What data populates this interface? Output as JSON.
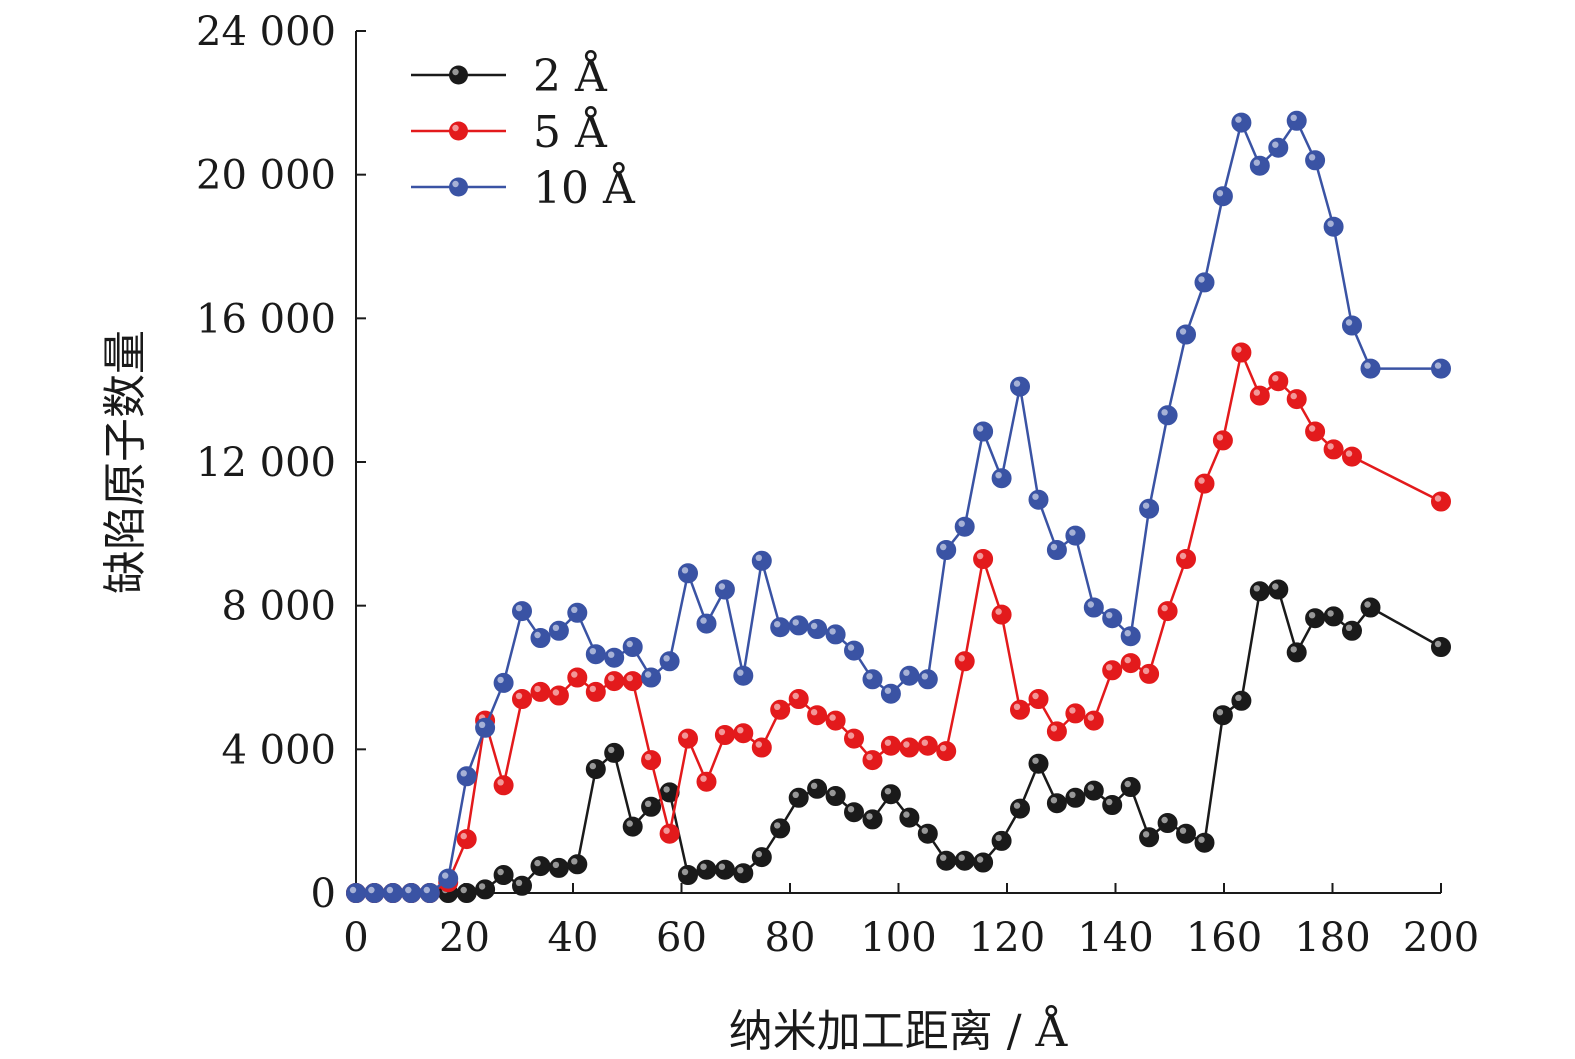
{
  "chart_data": {
    "type": "line",
    "title": "",
    "xlabel": "纳米加工距离 / Å",
    "ylabel": "缺陷原子数量",
    "xlim": [
      0,
      200
    ],
    "ylim": [
      0,
      24000
    ],
    "x_ticks": [
      0,
      20,
      40,
      60,
      80,
      100,
      120,
      140,
      160,
      180,
      200
    ],
    "x_tick_labels": [
      "0",
      "20",
      "40",
      "60",
      "80",
      "100",
      "120",
      "140",
      "160",
      "180",
      "200"
    ],
    "y_ticks": [
      0,
      4000,
      8000,
      12000,
      16000,
      20000,
      24000
    ],
    "y_tick_labels": [
      "0",
      "4 000",
      "8 000",
      "12 000",
      "16 000",
      "20 000",
      "24 000"
    ],
    "grid": false,
    "legend_position": "top-left",
    "series": [
      {
        "name": "2 Å",
        "color": "#1a1a1a",
        "points": [
          [
            0,
            0
          ],
          [
            3.4,
            0
          ],
          [
            6.8,
            0
          ],
          [
            10.2,
            0
          ],
          [
            13.6,
            0
          ],
          [
            17,
            0
          ],
          [
            20.4,
            0
          ],
          [
            23.8,
            100
          ],
          [
            27.2,
            500
          ],
          [
            30.6,
            200
          ],
          [
            34,
            750
          ],
          [
            37.4,
            700
          ],
          [
            40.8,
            800
          ],
          [
            44.2,
            3450
          ],
          [
            47.6,
            3900
          ],
          [
            51,
            1850
          ],
          [
            54.4,
            2400
          ],
          [
            57.8,
            2800
          ],
          [
            61.2,
            500
          ],
          [
            64.6,
            650
          ],
          [
            68,
            650
          ],
          [
            71.4,
            550
          ],
          [
            74.8,
            1000
          ],
          [
            78.2,
            1800
          ],
          [
            81.6,
            2650
          ],
          [
            85,
            2900
          ],
          [
            88.4,
            2700
          ],
          [
            91.8,
            2250
          ],
          [
            95.2,
            2050
          ],
          [
            98.6,
            2750
          ],
          [
            102,
            2100
          ],
          [
            105.4,
            1650
          ],
          [
            108.8,
            900
          ],
          [
            112.2,
            900
          ],
          [
            115.6,
            850
          ],
          [
            119,
            1450
          ],
          [
            122.4,
            2350
          ],
          [
            125.8,
            3600
          ],
          [
            129.2,
            2500
          ],
          [
            132.6,
            2650
          ],
          [
            136,
            2850
          ],
          [
            139.4,
            2450
          ],
          [
            142.8,
            2950
          ],
          [
            146.2,
            1550
          ],
          [
            149.6,
            1950
          ],
          [
            153,
            1650
          ],
          [
            156.4,
            1400
          ],
          [
            159.8,
            4950
          ],
          [
            163.2,
            5350
          ],
          [
            166.6,
            8400
          ],
          [
            170,
            8450
          ],
          [
            173.4,
            6700
          ],
          [
            176.8,
            7650
          ],
          [
            180.2,
            7700
          ],
          [
            183.6,
            7300
          ],
          [
            187,
            7950
          ],
          [
            200,
            6850
          ]
        ]
      },
      {
        "name": "5 Å",
        "color": "#e31a1c",
        "points": [
          [
            0,
            0
          ],
          [
            3.4,
            0
          ],
          [
            6.8,
            0
          ],
          [
            10.2,
            0
          ],
          [
            13.6,
            0
          ],
          [
            17,
            300
          ],
          [
            20.4,
            1500
          ],
          [
            23.8,
            4800
          ],
          [
            27.2,
            3000
          ],
          [
            30.6,
            5400
          ],
          [
            34,
            5600
          ],
          [
            37.4,
            5500
          ],
          [
            40.8,
            6000
          ],
          [
            44.2,
            5600
          ],
          [
            47.6,
            5900
          ],
          [
            51,
            5900
          ],
          [
            54.4,
            3700
          ],
          [
            57.8,
            1650
          ],
          [
            61.2,
            4300
          ],
          [
            64.6,
            3100
          ],
          [
            68,
            4400
          ],
          [
            71.4,
            4450
          ],
          [
            74.8,
            4050
          ],
          [
            78.2,
            5100
          ],
          [
            81.6,
            5400
          ],
          [
            85,
            4950
          ],
          [
            88.4,
            4800
          ],
          [
            91.8,
            4300
          ],
          [
            95.2,
            3700
          ],
          [
            98.6,
            4100
          ],
          [
            102,
            4050
          ],
          [
            105.4,
            4100
          ],
          [
            108.8,
            3950
          ],
          [
            112.2,
            6450
          ],
          [
            115.6,
            9300
          ],
          [
            119,
            7750
          ],
          [
            122.4,
            5100
          ],
          [
            125.8,
            5400
          ],
          [
            129.2,
            4500
          ],
          [
            132.6,
            5000
          ],
          [
            136,
            4800
          ],
          [
            139.4,
            6200
          ],
          [
            142.8,
            6400
          ],
          [
            146.2,
            6100
          ],
          [
            149.6,
            7850
          ],
          [
            153,
            9300
          ],
          [
            156.4,
            11400
          ],
          [
            159.8,
            12600
          ],
          [
            163.2,
            15050
          ],
          [
            166.6,
            13850
          ],
          [
            170,
            14250
          ],
          [
            173.4,
            13750
          ],
          [
            176.8,
            12850
          ],
          [
            180.2,
            12350
          ],
          [
            183.6,
            12150
          ],
          [
            200,
            10900
          ]
        ]
      },
      {
        "name": "10 Å",
        "color": "#3a53a4",
        "points": [
          [
            0,
            0
          ],
          [
            3.4,
            0
          ],
          [
            6.8,
            0
          ],
          [
            10.2,
            0
          ],
          [
            13.6,
            0
          ],
          [
            17,
            400
          ],
          [
            20.4,
            3250
          ],
          [
            23.8,
            4600
          ],
          [
            27.2,
            5850
          ],
          [
            30.6,
            7850
          ],
          [
            34,
            7100
          ],
          [
            37.4,
            7300
          ],
          [
            40.8,
            7800
          ],
          [
            44.2,
            6650
          ],
          [
            47.6,
            6550
          ],
          [
            51,
            6850
          ],
          [
            54.4,
            6000
          ],
          [
            57.8,
            6450
          ],
          [
            61.2,
            8900
          ],
          [
            64.6,
            7500
          ],
          [
            68,
            8450
          ],
          [
            71.4,
            6050
          ],
          [
            74.8,
            9250
          ],
          [
            78.2,
            7400
          ],
          [
            81.6,
            7450
          ],
          [
            85,
            7350
          ],
          [
            88.4,
            7200
          ],
          [
            91.8,
            6750
          ],
          [
            95.2,
            5950
          ],
          [
            98.6,
            5550
          ],
          [
            102,
            6050
          ],
          [
            105.4,
            5950
          ],
          [
            108.8,
            9550
          ],
          [
            112.2,
            10200
          ],
          [
            115.6,
            12850
          ],
          [
            119,
            11550
          ],
          [
            122.4,
            14100
          ],
          [
            125.8,
            10950
          ],
          [
            129.2,
            9550
          ],
          [
            132.6,
            9950
          ],
          [
            136,
            7950
          ],
          [
            139.4,
            7650
          ],
          [
            142.8,
            7150
          ],
          [
            146.2,
            10700
          ],
          [
            149.6,
            13300
          ],
          [
            153,
            15550
          ],
          [
            156.4,
            17000
          ],
          [
            159.8,
            19400
          ],
          [
            163.2,
            21450
          ],
          [
            166.6,
            20250
          ],
          [
            170,
            20750
          ],
          [
            173.4,
            21500
          ],
          [
            176.8,
            20400
          ],
          [
            180.2,
            18550
          ],
          [
            183.6,
            15800
          ],
          [
            187,
            14600
          ],
          [
            200,
            14600
          ]
        ]
      }
    ]
  }
}
